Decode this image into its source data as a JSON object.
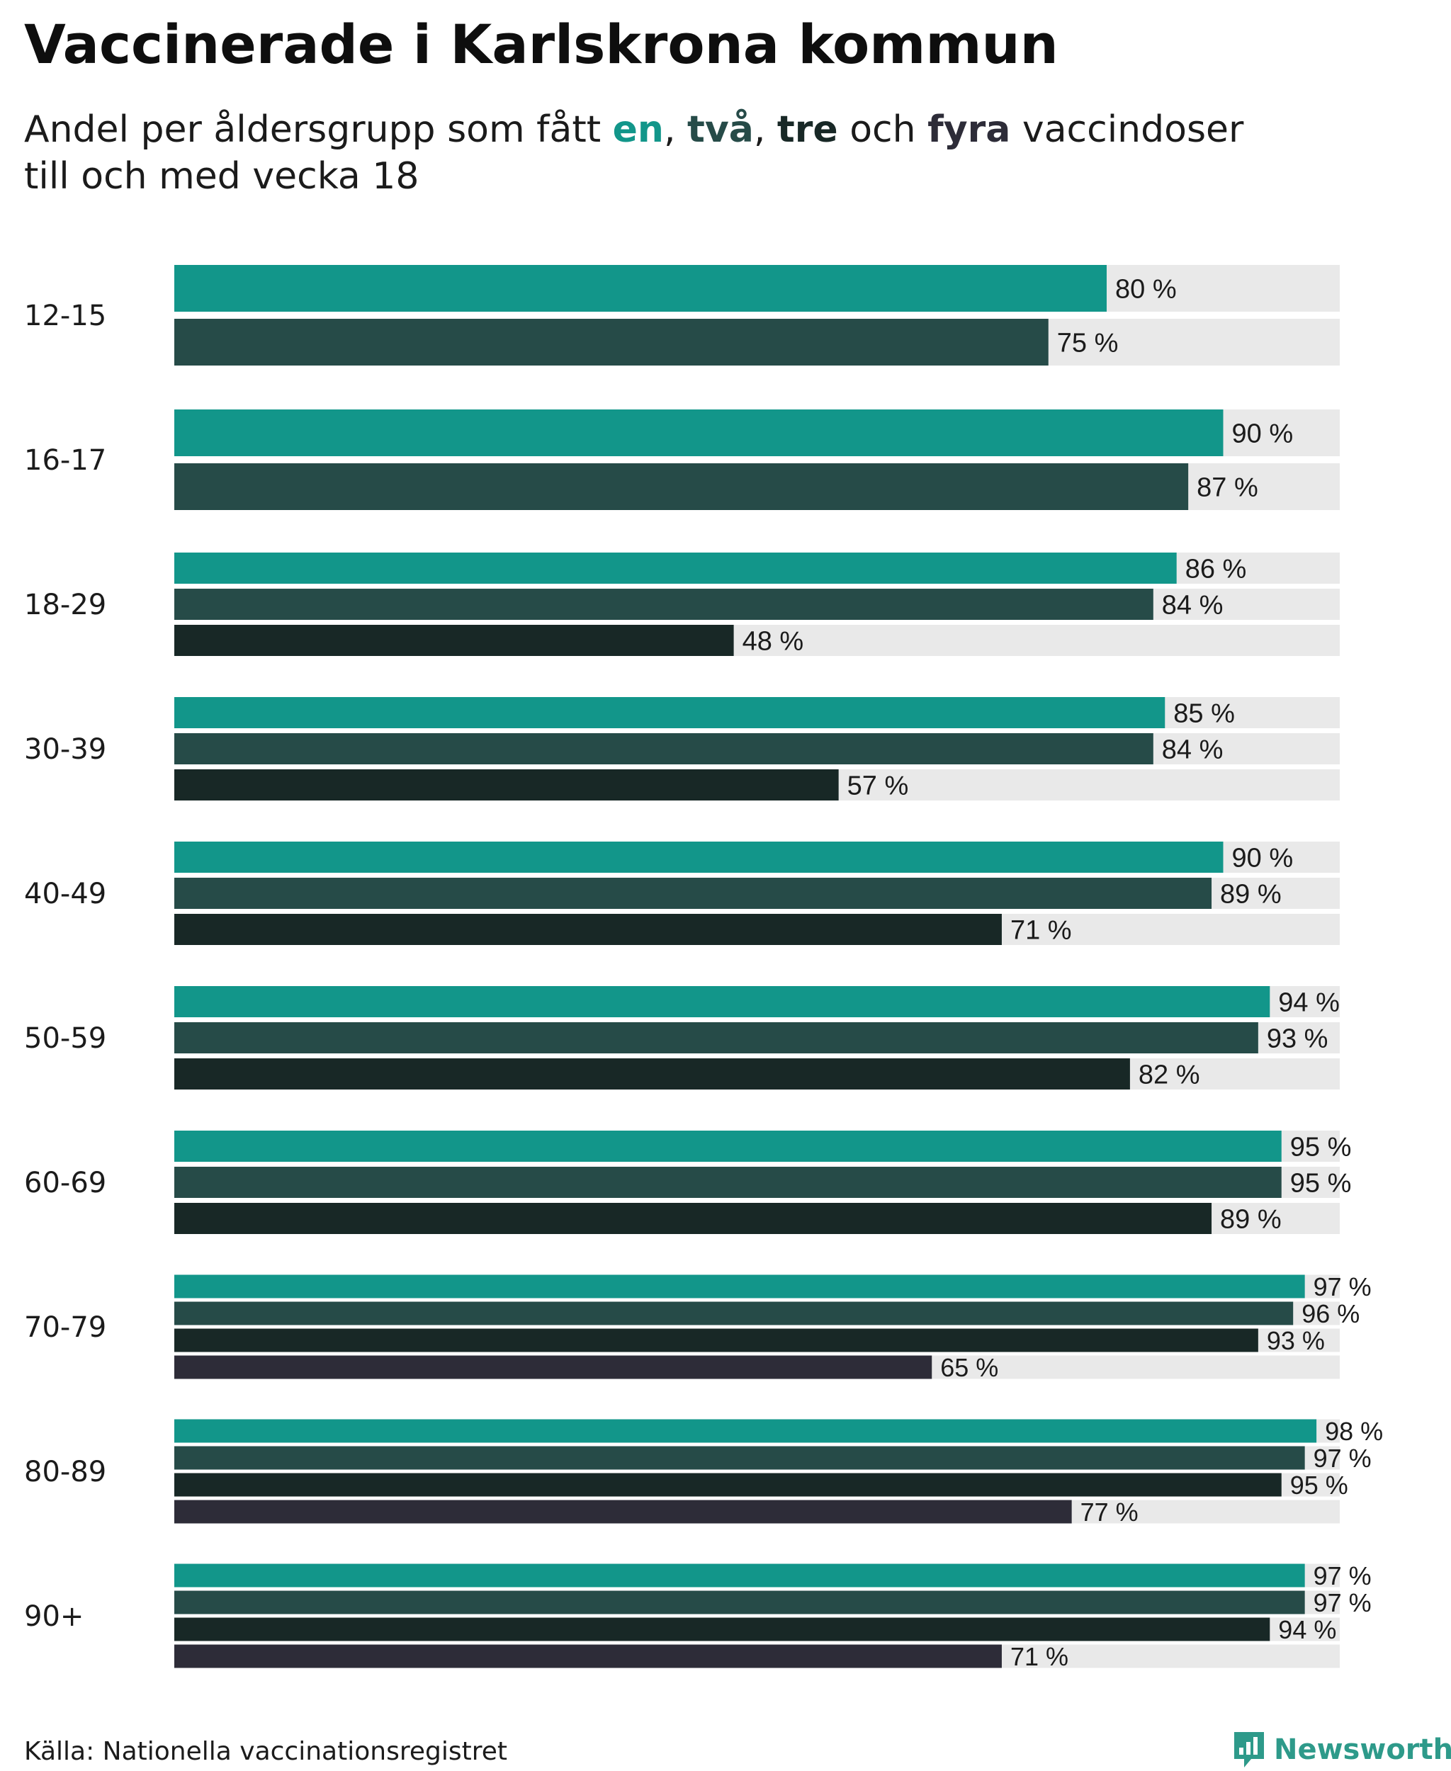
{
  "header": {
    "title": "Vaccinerade i Karlskrona kommun",
    "subtitle_prefix": "Andel per åldersgrupp som fått ",
    "subtitle_en": "en",
    "subtitle_sep1": ", ",
    "subtitle_tva": "två",
    "subtitle_sep2": ", ",
    "subtitle_tre": "tre",
    "subtitle_och": " och ",
    "subtitle_fyra": "fyra",
    "subtitle_suffix": " vaccindoser",
    "subtitle_line2": "till och med vecka 18"
  },
  "colors": {
    "en": "#12968a",
    "tva": "#264b48",
    "tre": "#182826",
    "fyra": "#2d2c38",
    "track": "#e9e9e9",
    "brand": "#2e9a8a"
  },
  "footer": {
    "source": "Källa: Nationella vaccinationsregistret",
    "brand": "Newsworthy"
  },
  "chart_data": {
    "type": "bar",
    "orientation": "horizontal",
    "title": "Vaccinerade i Karlskrona kommun",
    "xlim": [
      0,
      100
    ],
    "unit": "%",
    "grid": false,
    "series_names": [
      "en",
      "två",
      "tre",
      "fyra"
    ],
    "groups": [
      {
        "label": "12-15",
        "values": [
          80,
          75
        ],
        "labels": [
          "80 %",
          "75 %"
        ]
      },
      {
        "label": "16-17",
        "values": [
          90,
          87
        ],
        "labels": [
          "90 %",
          "87 %"
        ]
      },
      {
        "label": "18-29",
        "values": [
          86,
          84,
          48
        ],
        "labels": [
          "86 %",
          "84 %",
          "48 %"
        ]
      },
      {
        "label": "30-39",
        "values": [
          85,
          84,
          57
        ],
        "labels": [
          "85 %",
          "84 %",
          "57 %"
        ]
      },
      {
        "label": "40-49",
        "values": [
          90,
          89,
          71
        ],
        "labels": [
          "90 %",
          "89 %",
          "71 %"
        ]
      },
      {
        "label": "50-59",
        "values": [
          94,
          93,
          82
        ],
        "labels": [
          "94 %",
          "93 %",
          "82 %"
        ]
      },
      {
        "label": "60-69",
        "values": [
          95,
          95,
          89
        ],
        "labels": [
          "95 %",
          "95 %",
          "89 %"
        ]
      },
      {
        "label": "70-79",
        "values": [
          97,
          96,
          93,
          65
        ],
        "labels": [
          "97 %",
          "96 %",
          "93 %",
          "65 %"
        ]
      },
      {
        "label": "80-89",
        "values": [
          98,
          97,
          95,
          77
        ],
        "labels": [
          "98 %",
          "97 %",
          "95 %",
          "77 %"
        ]
      },
      {
        "label": "90+",
        "values": [
          97,
          97,
          94,
          71
        ],
        "labels": [
          "97 %",
          "97 %",
          "94 %",
          "71 %"
        ]
      }
    ]
  }
}
